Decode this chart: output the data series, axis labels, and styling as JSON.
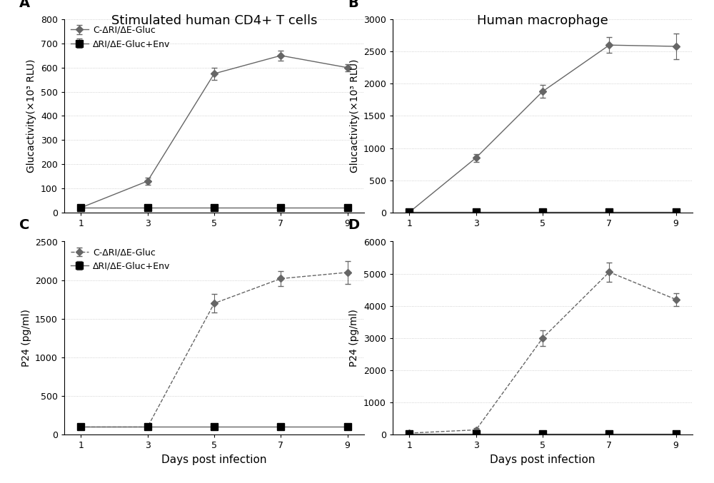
{
  "days": [
    1,
    3,
    5,
    7,
    9
  ],
  "panel_A": {
    "label": "A",
    "col_title": "Stimulated human CD4+ T cells",
    "ylabel": "Glucactivity(×10³ RLU)",
    "ylim": [
      0,
      800
    ],
    "yticks": [
      0,
      100,
      200,
      300,
      400,
      500,
      600,
      700,
      800
    ],
    "line1_y": [
      20,
      130,
      575,
      650,
      600
    ],
    "line1_yerr": [
      5,
      15,
      25,
      20,
      15
    ],
    "line2_y": [
      20,
      20,
      20,
      20,
      20
    ],
    "line2_yerr": [
      3,
      3,
      3,
      3,
      3
    ],
    "line1_style": "-",
    "line2_style": "-",
    "show_legend": true,
    "show_xlabel": false
  },
  "panel_B": {
    "label": "B",
    "col_title": "Human macrophage",
    "ylabel": "Glucactivity(×10³ RLU)",
    "ylim": [
      0,
      3000
    ],
    "yticks": [
      0,
      500,
      1000,
      1500,
      2000,
      2500,
      3000
    ],
    "line1_y": [
      5,
      850,
      1880,
      2600,
      2580
    ],
    "line1_yerr": [
      5,
      60,
      100,
      120,
      200
    ],
    "line2_y": [
      5,
      5,
      5,
      5,
      5
    ],
    "line2_yerr": [
      2,
      2,
      2,
      2,
      2
    ],
    "line1_style": "-",
    "line2_style": "-",
    "show_legend": false,
    "show_xlabel": false
  },
  "panel_C": {
    "label": "C",
    "col_title": "",
    "ylabel": "P24 (pg/ml)",
    "ylim": [
      0,
      2500
    ],
    "yticks": [
      0,
      500,
      1000,
      1500,
      2000,
      2500
    ],
    "line1_y": [
      100,
      100,
      1700,
      2020,
      2100
    ],
    "line1_yerr": [
      10,
      10,
      120,
      100,
      150
    ],
    "line2_y": [
      100,
      100,
      100,
      100,
      100
    ],
    "line2_yerr": [
      5,
      5,
      5,
      5,
      5
    ],
    "line1_style": "--",
    "line2_style": "-",
    "show_legend": true,
    "show_xlabel": true
  },
  "panel_D": {
    "label": "D",
    "col_title": "",
    "ylabel": "P24 (pg/ml)",
    "ylim": [
      0,
      6000
    ],
    "yticks": [
      0,
      1000,
      2000,
      3000,
      4000,
      5000,
      6000
    ],
    "line1_y": [
      50,
      150,
      3000,
      5050,
      4200
    ],
    "line1_yerr": [
      20,
      50,
      250,
      300,
      200
    ],
    "line2_y": [
      30,
      30,
      30,
      30,
      30
    ],
    "line2_yerr": [
      10,
      10,
      10,
      10,
      10
    ],
    "line1_style": "--",
    "line2_style": "-",
    "show_legend": false,
    "show_xlabel": true
  },
  "legend_label1": "C-ΔRI/ΔE-Gluc",
  "legend_label2": "ΔRI/ΔE-Gluc+Env",
  "line_color": "#666666",
  "marker1": "D",
  "marker2": "s",
  "xlabel": "Days post infection",
  "col_title_fontsize": 13,
  "label_fontsize": 10,
  "tick_fontsize": 9,
  "legend_fontsize": 9,
  "panel_label_fontsize": 14
}
